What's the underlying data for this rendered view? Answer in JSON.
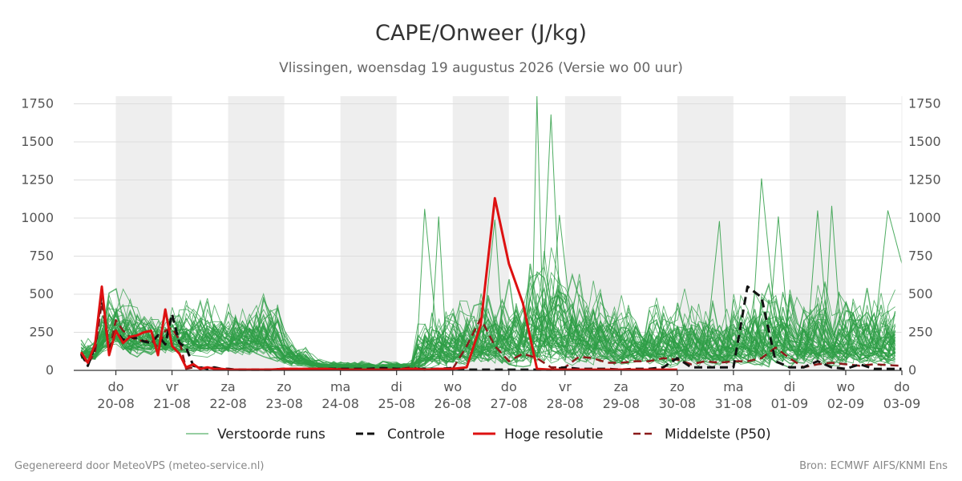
{
  "chart_data": {
    "type": "line",
    "title": "CAPE/Onweer (J/kg)",
    "subtitle": "Vlissingen, woensdag 19 augustus 2026 (Versie wo 00 uur)",
    "ylim": [
      0,
      1800
    ],
    "yticks": [
      0,
      250,
      500,
      750,
      1000,
      1250,
      1500,
      1750
    ],
    "x_start_day": 19.25,
    "x_end_day": 34.0,
    "day_labels": [
      {
        "day": 20,
        "weekday": "do",
        "date": "20-08"
      },
      {
        "day": 21,
        "weekday": "vr",
        "date": "21-08"
      },
      {
        "day": 22,
        "weekday": "za",
        "date": "22-08"
      },
      {
        "day": 23,
        "weekday": "zo",
        "date": "23-08"
      },
      {
        "day": 24,
        "weekday": "ma",
        "date": "24-08"
      },
      {
        "day": 25,
        "weekday": "di",
        "date": "25-08"
      },
      {
        "day": 26,
        "weekday": "wo",
        "date": "26-08"
      },
      {
        "day": 27,
        "weekday": "do",
        "date": "27-08"
      },
      {
        "day": 28,
        "weekday": "vr",
        "date": "28-08"
      },
      {
        "day": 29,
        "weekday": "za",
        "date": "29-08"
      },
      {
        "day": 30,
        "weekday": "zo",
        "date": "30-08"
      },
      {
        "day": 31,
        "weekday": "ma",
        "date": "31-08"
      },
      {
        "day": 32,
        "weekday": "di",
        "date": "01-09"
      },
      {
        "day": 33,
        "weekday": "wo",
        "date": "02-09"
      },
      {
        "day": 34,
        "weekday": "do",
        "date": "03-09"
      }
    ],
    "shaded_days": [
      20,
      22,
      24,
      26,
      28,
      30,
      32
    ],
    "grid": true,
    "legend_position": "bottom",
    "colors": {
      "ensemble": "#2e9e45",
      "control": "#111111",
      "hires": "#dd1111",
      "median": "#8b1a1a",
      "shade": "#eeeeee",
      "grid": "#dddddd"
    },
    "ensemble_count": 50,
    "series": [
      {
        "name": "Controle",
        "style": "dashed",
        "x": [
          19.38,
          19.5,
          19.63,
          19.75,
          19.88,
          20.0,
          20.13,
          20.25,
          20.38,
          20.5,
          20.63,
          20.75,
          20.88,
          21.0,
          21.13,
          21.25,
          21.38,
          21.5,
          21.63,
          21.75,
          21.88,
          22.0,
          22.13,
          22.25,
          22.38,
          22.5,
          22.75,
          23.0,
          23.25,
          23.5,
          23.75,
          24.0,
          24.25,
          24.5,
          24.75,
          25.0,
          25.25,
          25.5,
          25.75,
          26.0,
          26.25,
          26.5,
          26.75,
          27.0,
          27.25,
          27.5,
          27.75,
          28.0,
          28.25,
          28.5,
          28.75,
          29.0,
          29.25,
          29.5,
          29.75,
          30.0,
          30.25,
          30.5,
          30.75,
          31.0,
          31.25,
          31.5,
          31.75,
          32.0,
          32.25,
          32.5,
          32.75,
          33.0,
          33.25,
          33.5,
          33.75,
          34.0
        ],
        "values": [
          110,
          30,
          160,
          520,
          120,
          260,
          200,
          220,
          210,
          190,
          180,
          230,
          170,
          370,
          180,
          150,
          30,
          20,
          10,
          20,
          10,
          10,
          5,
          5,
          5,
          5,
          5,
          10,
          10,
          10,
          10,
          10,
          10,
          10,
          15,
          10,
          10,
          10,
          10,
          15,
          5,
          5,
          5,
          5,
          5,
          5,
          5,
          20,
          10,
          10,
          10,
          5,
          10,
          10,
          20,
          80,
          20,
          20,
          20,
          20,
          550,
          480,
          60,
          20,
          20,
          60,
          20,
          10,
          40,
          10,
          10,
          10
        ]
      },
      {
        "name": "Hoge resolutie",
        "style": "solid",
        "x": [
          19.38,
          19.5,
          19.63,
          19.75,
          19.88,
          20.0,
          20.13,
          20.25,
          20.38,
          20.5,
          20.63,
          20.75,
          20.88,
          21.0,
          21.13,
          21.25,
          21.38,
          21.5,
          21.63,
          21.75,
          21.88,
          22.0,
          22.13,
          22.25,
          22.38,
          22.5,
          22.75,
          23.0,
          23.25,
          23.5,
          23.75,
          24.0,
          24.25,
          24.5,
          24.75,
          25.0,
          25.25,
          25.5,
          25.75,
          26.0,
          26.25,
          26.5,
          26.75,
          27.0,
          27.25,
          27.5,
          27.75,
          28.0,
          28.25,
          28.5,
          28.75,
          29.0,
          29.25,
          29.5,
          29.75,
          30.0
        ],
        "values": [
          120,
          50,
          170,
          550,
          100,
          260,
          180,
          220,
          230,
          250,
          260,
          100,
          400,
          160,
          110,
          20,
          40,
          10,
          20,
          10,
          10,
          5,
          5,
          5,
          5,
          5,
          5,
          10,
          10,
          10,
          10,
          5,
          5,
          5,
          5,
          5,
          10,
          5,
          10,
          10,
          20,
          300,
          1130,
          700,
          440,
          10,
          5,
          5,
          5,
          5,
          5,
          5,
          5,
          5,
          5,
          5
        ]
      },
      {
        "name": "Middelste (P50)",
        "style": "dashed",
        "x": [
          19.38,
          19.5,
          19.63,
          19.75,
          19.88,
          20.0,
          20.13,
          20.25,
          20.38,
          20.5,
          20.63,
          20.75,
          20.88,
          21.0,
          21.13,
          21.25,
          21.38,
          21.5,
          21.63,
          21.75,
          21.88,
          22.0,
          22.13,
          22.25,
          22.38,
          22.5,
          22.75,
          23.0,
          23.25,
          23.5,
          23.75,
          24.0,
          24.25,
          24.5,
          24.75,
          25.0,
          25.25,
          25.5,
          25.75,
          26.0,
          26.25,
          26.5,
          26.75,
          27.0,
          27.25,
          27.5,
          27.75,
          28.0,
          28.25,
          28.5,
          28.75,
          29.0,
          29.25,
          29.5,
          29.75,
          30.0,
          30.25,
          30.5,
          30.75,
          31.0,
          31.25,
          31.5,
          31.75,
          32.0,
          32.25,
          32.5,
          32.75,
          33.0,
          33.25,
          33.5,
          33.75,
          34.0
        ],
        "values": [
          100,
          40,
          120,
          450,
          120,
          330,
          260,
          220,
          200,
          190,
          200,
          150,
          260,
          280,
          200,
          10,
          20,
          20,
          10,
          20,
          10,
          5,
          5,
          5,
          5,
          5,
          5,
          5,
          10,
          10,
          10,
          10,
          5,
          5,
          5,
          5,
          20,
          5,
          5,
          10,
          160,
          340,
          160,
          60,
          110,
          80,
          20,
          20,
          90,
          80,
          50,
          50,
          60,
          60,
          80,
          70,
          40,
          60,
          50,
          60,
          60,
          80,
          150,
          80,
          20,
          40,
          50,
          40,
          30,
          40,
          35,
          30
        ]
      }
    ],
    "legend": [
      {
        "label": "Verstoorde runs",
        "key": "ensemble"
      },
      {
        "label": "Controle",
        "key": "control"
      },
      {
        "label": "Hoge resolutie",
        "key": "hires"
      },
      {
        "label": "Middelste (P50)",
        "key": "median"
      }
    ],
    "footer_left": "Gegenereerd door MeteoVPS (meteo-service.nl)",
    "footer_right": "Bron: ECMWF AIFS/KNMI Ens"
  }
}
